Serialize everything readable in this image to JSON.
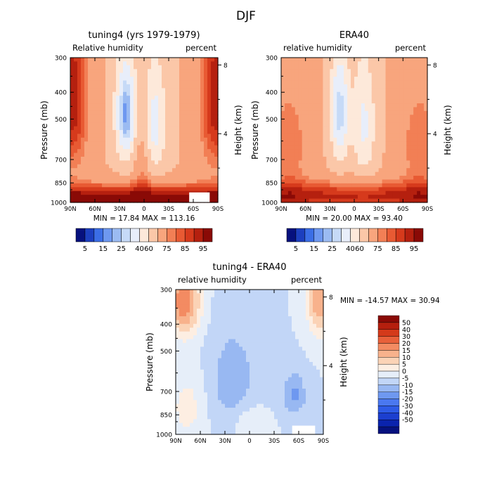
{
  "figure_title": "DJF",
  "colors": {
    "abs_scale": [
      "#06117e",
      "#1c3fbf",
      "#3b6ee6",
      "#6e98f0",
      "#9bbbf2",
      "#c6daf7",
      "#e8eefa",
      "#fde9da",
      "#fbc7a8",
      "#f8a57d",
      "#f27f55",
      "#e85a33",
      "#d63a1c",
      "#b5200f",
      "#8a0a06"
    ],
    "diff_scale": [
      "#06117e",
      "#0a23ad",
      "#1c3fcf",
      "#2e5be6",
      "#4a78f0",
      "#6e98f0",
      "#98b8f2",
      "#c2d6f7",
      "#e6eef9",
      "#fdeee2",
      "#fbd3b6",
      "#f8b28c",
      "#f38b62",
      "#e8603a",
      "#d43a1a",
      "#b51f0e",
      "#8a0a06"
    ]
  },
  "chart_data": [
    {
      "type": "heatmap",
      "title": "tuning4 (yrs 1979-1979)",
      "label_left": "Relative humidity",
      "label_right": "percent",
      "ylabel": "Pressure (mb)",
      "ylabel_right": "Height (km)",
      "x_ticks": [
        "90N",
        "60N",
        "30N",
        "0",
        "30S",
        "60S",
        "90S"
      ],
      "x_tick_values": [
        90,
        60,
        30,
        0,
        -30,
        -60,
        -90
      ],
      "y_ticks": [
        "300",
        "400",
        "500",
        "700",
        "850",
        "1000"
      ],
      "y_tick_values": [
        300,
        400,
        500,
        700,
        850,
        1000
      ],
      "right_ticks": [
        "8",
        "4"
      ],
      "right_tick_values": [
        8,
        4
      ],
      "xlim": [
        90,
        -90
      ],
      "ylim": [
        300,
        1000
      ],
      "stats": "MIN =   17.84   MAX =  113.16",
      "min": 17.84,
      "max": 113.16,
      "colorbar_labels": [
        "5",
        "15",
        "25",
        "40",
        "60",
        "75",
        "85",
        "95"
      ]
    },
    {
      "type": "heatmap",
      "title": "ERA40",
      "label_left": "relative humidity",
      "label_right": "percent",
      "ylabel": "Pressure (mb)",
      "ylabel_right": "Height (km)",
      "x_ticks": [
        "90N",
        "60N",
        "30N",
        "0",
        "30S",
        "60S",
        "90S"
      ],
      "x_tick_values": [
        90,
        60,
        30,
        0,
        -30,
        -60,
        -90
      ],
      "y_ticks": [
        "300",
        "400",
        "500",
        "700",
        "850",
        "1000"
      ],
      "y_tick_values": [
        300,
        400,
        500,
        700,
        850,
        1000
      ],
      "right_ticks": [
        "8",
        "4"
      ],
      "right_tick_values": [
        8,
        4
      ],
      "xlim": [
        90,
        -90
      ],
      "ylim": [
        300,
        1000
      ],
      "stats": "MIN =   20.00   MAX =   93.40",
      "min": 20.0,
      "max": 93.4,
      "colorbar_labels": [
        "5",
        "15",
        "25",
        "40",
        "60",
        "75",
        "85",
        "95"
      ]
    },
    {
      "type": "heatmap",
      "title": "tuning4 - ERA40",
      "label_left": "relative humidity",
      "label_right": "percent",
      "ylabel": "Pressure (mb)",
      "ylabel_right": "Height (km)",
      "x_ticks": [
        "90N",
        "60N",
        "30N",
        "0",
        "30S",
        "60S",
        "90S"
      ],
      "x_tick_values": [
        90,
        60,
        30,
        0,
        -30,
        -60,
        -90
      ],
      "y_ticks": [
        "300",
        "400",
        "500",
        "700",
        "850",
        "1000"
      ],
      "y_tick_values": [
        300,
        400,
        500,
        700,
        850,
        1000
      ],
      "right_ticks": [
        "8",
        "4"
      ],
      "right_tick_values": [
        8,
        4
      ],
      "xlim": [
        90,
        -90
      ],
      "ylim": [
        300,
        1000
      ],
      "stats": "MIN = -14.57   MAX =   30.94",
      "min": -14.57,
      "max": 30.94,
      "colorbar_labels": [
        "50",
        "40",
        "30",
        "20",
        "15",
        "10",
        "5",
        "0",
        "-5",
        "-10",
        "-15",
        "-20",
        "-30",
        "-40",
        "-50"
      ]
    }
  ]
}
